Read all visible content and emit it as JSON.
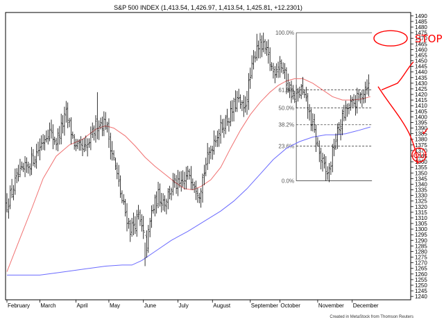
{
  "chart_data": {
    "type": "ohlc",
    "title": "S&P 500 INDEX (1,413.54, 1,426.97, 1,413.54, 1,425.81, +12.2301)",
    "credit": "Created in MetaStock from Thomson Reuters",
    "ylim": [
      1237,
      1493
    ],
    "y_ticks": [
      1240,
      1245,
      1250,
      1255,
      1260,
      1265,
      1270,
      1275,
      1280,
      1285,
      1290,
      1295,
      1300,
      1305,
      1310,
      1315,
      1320,
      1325,
      1330,
      1335,
      1340,
      1345,
      1350,
      1355,
      1360,
      1365,
      1370,
      1375,
      1380,
      1385,
      1390,
      1395,
      1400,
      1405,
      1410,
      1415,
      1420,
      1425,
      1430,
      1435,
      1440,
      1445,
      1450,
      1455,
      1460,
      1465,
      1470,
      1475,
      1480,
      1485,
      1490
    ],
    "x_labels": [
      {
        "label": "February",
        "index": 0
      },
      {
        "label": "March",
        "index": 20
      },
      {
        "label": "April",
        "index": 42
      },
      {
        "label": "May",
        "index": 62
      },
      {
        "label": "June",
        "index": 83
      },
      {
        "label": "July",
        "index": 104
      },
      {
        "label": "August",
        "index": 125
      },
      {
        "label": "September",
        "index": 148
      },
      {
        "label": "October",
        "index": 166
      },
      {
        "label": "November",
        "index": 189
      },
      {
        "label": "December",
        "index": 210
      }
    ],
    "n_bars": 221,
    "anchors": [
      [
        0,
        1322
      ],
      [
        6,
        1345
      ],
      [
        12,
        1355
      ],
      [
        18,
        1368
      ],
      [
        25,
        1388
      ],
      [
        30,
        1378
      ],
      [
        36,
        1402
      ],
      [
        42,
        1372
      ],
      [
        48,
        1370
      ],
      [
        55,
        1395
      ],
      [
        60,
        1395
      ],
      [
        65,
        1362
      ],
      [
        70,
        1325
      ],
      [
        75,
        1300
      ],
      [
        80,
        1310
      ],
      [
        85,
        1285
      ],
      [
        88,
        1315
      ],
      [
        92,
        1330
      ],
      [
        96,
        1325
      ],
      [
        101,
        1340
      ],
      [
        106,
        1338
      ],
      [
        111,
        1350
      ],
      [
        117,
        1333
      ],
      [
        121,
        1358
      ],
      [
        126,
        1380
      ],
      [
        131,
        1392
      ],
      [
        136,
        1402
      ],
      [
        140,
        1415
      ],
      [
        144,
        1405
      ],
      [
        148,
        1435
      ],
      [
        152,
        1465
      ],
      [
        157,
        1460
      ],
      [
        162,
        1440
      ],
      [
        166,
        1450
      ],
      [
        170,
        1432
      ],
      [
        175,
        1415
      ],
      [
        179,
        1424
      ],
      [
        183,
        1408
      ],
      [
        187,
        1385
      ],
      [
        191,
        1362
      ],
      [
        194,
        1350
      ],
      [
        196,
        1352
      ],
      [
        199,
        1375
      ],
      [
        203,
        1395
      ],
      [
        207,
        1408
      ],
      [
        211,
        1412
      ],
      [
        215,
        1418
      ],
      [
        219,
        1430
      ],
      [
        221,
        1425
      ]
    ],
    "bar_overrides": [
      {
        "index": 55,
        "high": 1422,
        "low": 1380
      },
      {
        "index": 84,
        "high": 1288,
        "low": 1267
      },
      {
        "index": 152,
        "high": 1474,
        "low": 1450
      },
      {
        "index": 194,
        "high": 1365,
        "low": 1343
      }
    ],
    "series": [
      {
        "name": "",
        "color": "#f07070",
        "points": [
          [
            0,
            1262
          ],
          [
            8,
            1292
          ],
          [
            15,
            1318
          ],
          [
            22,
            1345
          ],
          [
            30,
            1365
          ],
          [
            38,
            1375
          ],
          [
            46,
            1380
          ],
          [
            54,
            1389
          ],
          [
            60,
            1392
          ],
          [
            65,
            1390
          ],
          [
            72,
            1383
          ],
          [
            78,
            1374
          ],
          [
            84,
            1364
          ],
          [
            90,
            1356
          ],
          [
            96,
            1349
          ],
          [
            102,
            1342
          ],
          [
            108,
            1336
          ],
          [
            113,
            1335
          ],
          [
            118,
            1338
          ],
          [
            124,
            1344
          ],
          [
            130,
            1355
          ],
          [
            136,
            1372
          ],
          [
            142,
            1388
          ],
          [
            148,
            1402
          ],
          [
            154,
            1413
          ],
          [
            160,
            1422
          ],
          [
            165,
            1428
          ],
          [
            170,
            1432
          ],
          [
            175,
            1434
          ],
          [
            180,
            1434
          ],
          [
            186,
            1430
          ],
          [
            192,
            1424
          ],
          [
            198,
            1418
          ],
          [
            204,
            1415
          ],
          [
            210,
            1415
          ],
          [
            216,
            1416
          ],
          [
            221,
            1418
          ]
        ]
      },
      {
        "name": "",
        "color": "#6a6aff",
        "points": [
          [
            0,
            1259
          ],
          [
            10,
            1259
          ],
          [
            20,
            1259
          ],
          [
            30,
            1261
          ],
          [
            40,
            1263
          ],
          [
            50,
            1265
          ],
          [
            60,
            1267
          ],
          [
            70,
            1268
          ],
          [
            76,
            1268
          ],
          [
            82,
            1272
          ],
          [
            90,
            1280
          ],
          [
            100,
            1290
          ],
          [
            110,
            1298
          ],
          [
            120,
            1307
          ],
          [
            130,
            1316
          ],
          [
            138,
            1325
          ],
          [
            146,
            1336
          ],
          [
            154,
            1349
          ],
          [
            162,
            1362
          ],
          [
            170,
            1372
          ],
          [
            178,
            1378
          ],
          [
            186,
            1382
          ],
          [
            194,
            1384
          ],
          [
            200,
            1384
          ],
          [
            206,
            1385
          ],
          [
            214,
            1388
          ],
          [
            221,
            1391
          ]
        ]
      }
    ],
    "fibonacci": {
      "start_index": 176,
      "end_index": 222,
      "levels": [
        {
          "label": "100.0%",
          "value": 1475
        },
        {
          "label": "61.8%",
          "value": 1424
        },
        {
          "label": "50.0%",
          "value": 1408
        },
        {
          "label": "38.2%",
          "value": 1393
        },
        {
          "label": "23.6%",
          "value": 1374
        },
        {
          "label": "0.0%",
          "value": 1343
        }
      ]
    },
    "annotations": {
      "stop_label": "STOP",
      "ou_label": "OU",
      "check_label": "✓",
      "color": "#ff0000"
    }
  }
}
